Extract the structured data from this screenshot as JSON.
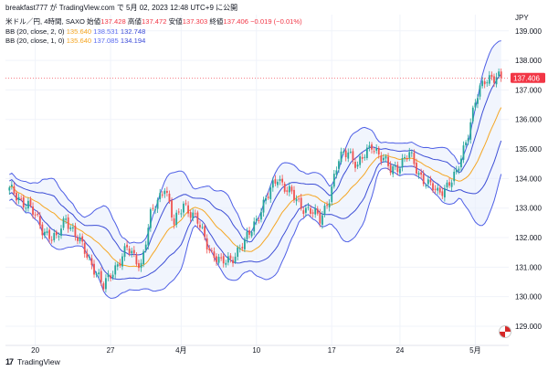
{
  "header": {
    "text": "breakfast777 が TradingView.com で 5月 02, 2023 12:48 UTC+9 に公開"
  },
  "legend": {
    "symbol": "米ドル／円, 4時間, SAXO",
    "open_label": "始値",
    "open": "137.428",
    "high_label": "高値",
    "high": "137.472",
    "low_label": "安値",
    "low": "137.303",
    "close_label": "終値",
    "close": "137.406",
    "change": "−0.019 (−0.01%)",
    "bb1_label": "BB (20, close, 2, 0)",
    "bb1_values": [
      "135.640",
      "138.531",
      "132.748"
    ],
    "bb2_label": "BB (20, close, 1, 0)",
    "bb2_values": [
      "135.640",
      "137.085",
      "134.194"
    ]
  },
  "footer": {
    "brand": "TradingView"
  },
  "colors": {
    "up": "#26a69a",
    "down": "#ef5350",
    "basis": "#f5a623",
    "band_outer": "#4e5fe6",
    "band_inner": "#3d4ed6",
    "fill": "#e8eefc",
    "grid": "#f0f3fa",
    "price_tag": "#f23645"
  },
  "chart_data": {
    "type": "candlestick",
    "currency": "JPY",
    "price_label": "137.406",
    "y_ticks": [
      "129.000",
      "130.000",
      "131.000",
      "132.000",
      "133.000",
      "134.000",
      "135.000",
      "136.000",
      "137.000",
      "138.000",
      "139.000"
    ],
    "ylim": [
      128.35,
      139.55
    ],
    "x_ticks": [
      "20",
      "27",
      "4月",
      "10",
      "17",
      "24",
      "5月"
    ],
    "x_tick_bars": [
      11,
      43,
      73,
      105,
      137,
      166,
      198
    ],
    "n_bars": 210,
    "anchors_close": [
      [
        0,
        133.6
      ],
      [
        8,
        133.1
      ],
      [
        14,
        132.3
      ],
      [
        20,
        131.9
      ],
      [
        24,
        132.7
      ],
      [
        30,
        131.8
      ],
      [
        36,
        131.0
      ],
      [
        40,
        130.3
      ],
      [
        44,
        130.9
      ],
      [
        50,
        131.6
      ],
      [
        56,
        131.1
      ],
      [
        60,
        132.7
      ],
      [
        66,
        133.8
      ],
      [
        70,
        132.4
      ],
      [
        74,
        133.2
      ],
      [
        80,
        132.5
      ],
      [
        86,
        131.5
      ],
      [
        90,
        131.1
      ],
      [
        94,
        131.3
      ],
      [
        100,
        131.8
      ],
      [
        104,
        132.5
      ],
      [
        110,
        133.4
      ],
      [
        114,
        134.1
      ],
      [
        118,
        133.6
      ],
      [
        124,
        133.1
      ],
      [
        128,
        132.9
      ],
      [
        132,
        132.6
      ],
      [
        136,
        133.4
      ],
      [
        140,
        134.6
      ],
      [
        144,
        135.0
      ],
      [
        148,
        134.4
      ],
      [
        152,
        134.9
      ],
      [
        154,
        135.2
      ],
      [
        158,
        134.7
      ],
      [
        162,
        134.3
      ],
      [
        166,
        134.5
      ],
      [
        170,
        134.8
      ],
      [
        174,
        134.2
      ],
      [
        178,
        133.8
      ],
      [
        182,
        133.5
      ],
      [
        186,
        133.8
      ],
      [
        190,
        134.1
      ],
      [
        194,
        135.3
      ],
      [
        198,
        136.6
      ],
      [
        202,
        137.3
      ],
      [
        205,
        137.5
      ],
      [
        209,
        137.406
      ]
    ]
  }
}
